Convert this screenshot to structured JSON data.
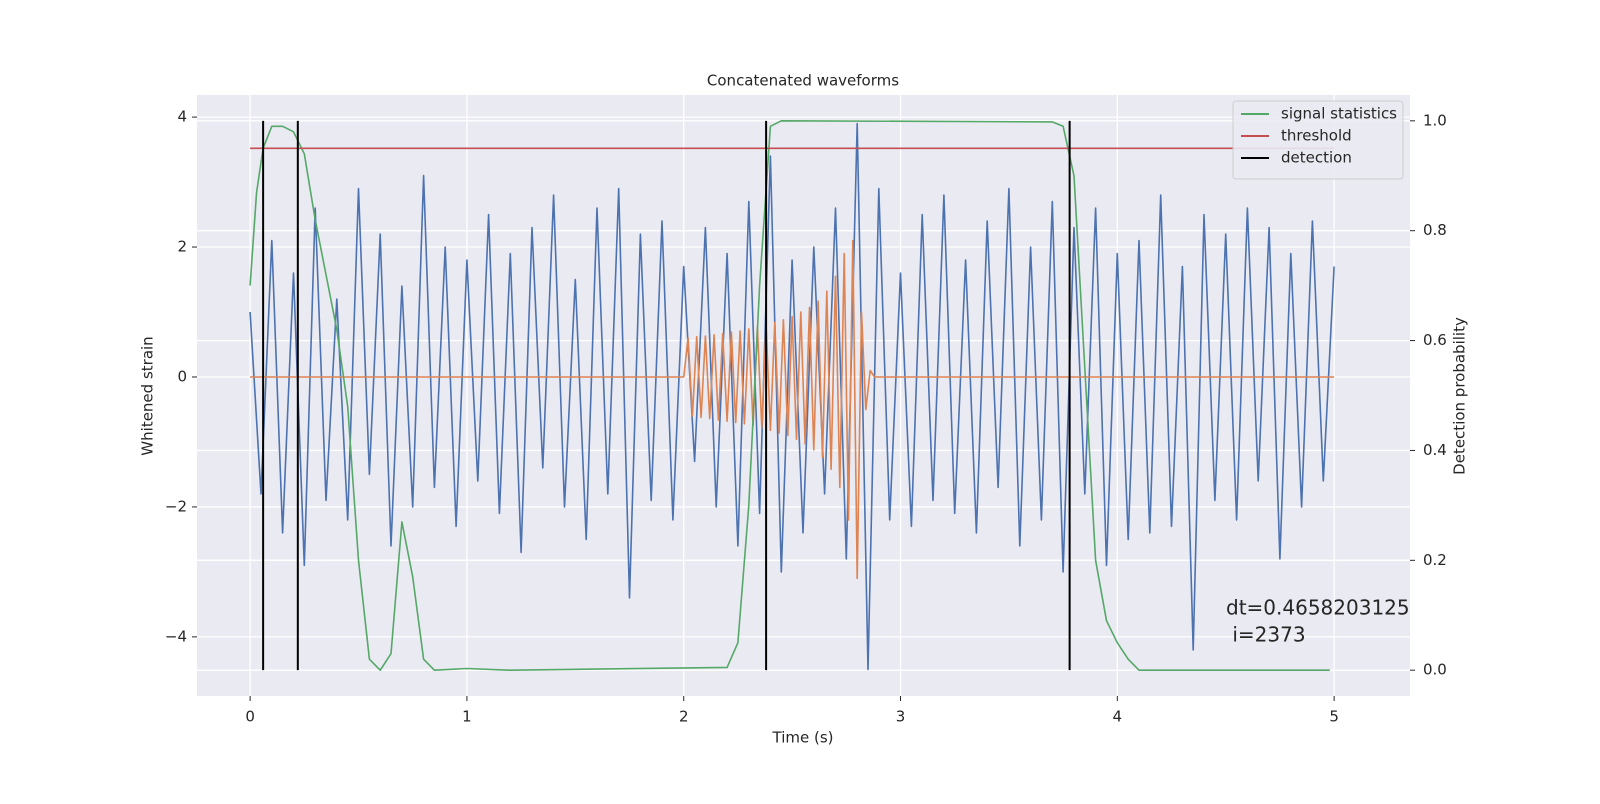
{
  "chart_data": {
    "type": "line",
    "title": "Concatenated waveforms",
    "xlabel": "Time (s)",
    "ylabel": "Whitened strain",
    "y2label": "Detection probability",
    "xlim": [
      -0.245,
      5.35
    ],
    "ylim": [
      -4.91,
      4.34
    ],
    "y2lim": [
      -0.047,
      1.047
    ],
    "xticks": [
      0,
      1,
      2,
      3,
      4,
      5
    ],
    "yticks": [
      {
        "value": -4,
        "label": "−4"
      },
      {
        "value": -2,
        "label": "−2"
      },
      0,
      2,
      4
    ],
    "y2ticks": [
      {
        "value": 0,
        "label": "0.0"
      },
      0.2,
      0.4,
      0.6,
      0.8,
      {
        "value": 1,
        "label": "1.0"
      }
    ],
    "grid": true,
    "legend": "upper right",
    "series": [
      {
        "color": "#4c72b0",
        "x": [
          0,
          0.05,
          0.1,
          0.15,
          0.2,
          0.25,
          0.3,
          0.35,
          0.4,
          0.45,
          0.5,
          0.55,
          0.6,
          0.65,
          0.7,
          0.75,
          0.8,
          0.85,
          0.9,
          0.95,
          1,
          1.05,
          1.1,
          1.15,
          1.2,
          1.25,
          1.3,
          1.35,
          1.4,
          1.45,
          1.5,
          1.55,
          1.6,
          1.65,
          1.7,
          1.75,
          1.8,
          1.85,
          1.9,
          1.95,
          2,
          2.05,
          2.1,
          2.15,
          2.2,
          2.25,
          2.3,
          2.35,
          2.4,
          2.45,
          2.5,
          2.55,
          2.6,
          2.65,
          2.7,
          2.75,
          2.8,
          2.85,
          2.9,
          2.95,
          3,
          3.05,
          3.1,
          3.15,
          3.2,
          3.25,
          3.3,
          3.35,
          3.4,
          3.45,
          3.5,
          3.55,
          3.6,
          3.65,
          3.7,
          3.75,
          3.8,
          3.85,
          3.9,
          3.95,
          4,
          4.05,
          4.1,
          4.15,
          4.2,
          4.25,
          4.3,
          4.35,
          4.4,
          4.45,
          4.5,
          4.55,
          4.6,
          4.65,
          4.7,
          4.75,
          4.8,
          4.85,
          4.9,
          4.95,
          5
        ],
        "values": [
          1.0,
          -1.8,
          2.1,
          -2.4,
          1.6,
          -2.9,
          2.6,
          -1.9,
          1.2,
          -2.2,
          2.9,
          -1.5,
          2.2,
          -2.6,
          1.4,
          -2.0,
          3.1,
          -1.7,
          2.0,
          -2.3,
          1.8,
          -1.6,
          2.5,
          -2.1,
          1.9,
          -2.7,
          2.3,
          -1.4,
          2.8,
          -2.0,
          1.5,
          -2.5,
          2.6,
          -1.8,
          2.9,
          -3.4,
          2.2,
          -1.9,
          2.4,
          -2.2,
          1.7,
          -1.3,
          2.3,
          -2.0,
          1.9,
          -2.6,
          2.7,
          -2.1,
          3.4,
          -3.0,
          1.8,
          -2.4,
          2.0,
          -1.8,
          2.6,
          -2.8,
          3.9,
          -4.5,
          2.9,
          -2.2,
          1.6,
          -2.3,
          2.5,
          -1.9,
          2.8,
          -2.1,
          1.8,
          -2.4,
          2.4,
          -1.7,
          2.9,
          -2.6,
          2.0,
          -2.2,
          2.7,
          -3.0,
          2.3,
          -1.8,
          2.6,
          -2.9,
          1.9,
          -2.5,
          2.1,
          -2.4,
          2.8,
          -2.3,
          1.7,
          -4.2,
          2.5,
          -1.9,
          2.2,
          -2.2,
          2.6,
          -1.6,
          2.3,
          -2.8,
          1.9,
          -2.0,
          2.4,
          -1.6,
          1.7
        ]
      },
      {
        "color": "#dd8452",
        "x": [
          0,
          2,
          2.02,
          2.04,
          2.06,
          2.08,
          2.1,
          2.12,
          2.14,
          2.16,
          2.18,
          2.2,
          2.22,
          2.24,
          2.26,
          2.28,
          2.3,
          2.32,
          2.34,
          2.36,
          2.38,
          2.4,
          2.42,
          2.44,
          2.46,
          2.48,
          2.5,
          2.52,
          2.54,
          2.56,
          2.58,
          2.6,
          2.62,
          2.64,
          2.66,
          2.68,
          2.7,
          2.72,
          2.74,
          2.76,
          2.78,
          2.8,
          2.82,
          2.84,
          2.86,
          2.88,
          5
        ],
        "values": [
          0,
          0,
          0.6,
          -0.6,
          0.62,
          -0.62,
          0.63,
          -0.64,
          0.65,
          -0.66,
          0.67,
          -0.68,
          0.69,
          -0.7,
          0.71,
          -0.72,
          0.74,
          -0.75,
          0.77,
          -0.78,
          0.8,
          -0.82,
          0.84,
          -0.86,
          0.88,
          -0.9,
          0.93,
          -0.96,
          1.0,
          -1.03,
          1.07,
          -1.12,
          1.17,
          -1.24,
          1.32,
          -1.42,
          1.55,
          -1.7,
          1.9,
          -2.2,
          2.1,
          -3.1,
          1.0,
          -0.5,
          0.1,
          0,
          0
        ]
      },
      {
        "name": "signal statistics",
        "color": "#55a868",
        "axis": "y2",
        "x": [
          0,
          0.03,
          0.06,
          0.1,
          0.15,
          0.2,
          0.25,
          0.3,
          0.35,
          0.4,
          0.45,
          0.5,
          0.55,
          0.6,
          0.65,
          0.7,
          0.75,
          0.8,
          0.85,
          1.0,
          1.2,
          2.2,
          2.25,
          2.3,
          2.35,
          2.4,
          2.45,
          3.7,
          3.75,
          3.8,
          3.85,
          3.9,
          3.95,
          4.0,
          4.05,
          4.1,
          4.98
        ],
        "values": [
          0.7,
          0.87,
          0.95,
          0.99,
          0.99,
          0.98,
          0.94,
          0.82,
          0.72,
          0.62,
          0.48,
          0.2,
          0.02,
          0.0,
          0.03,
          0.27,
          0.17,
          0.02,
          0.0,
          0.003,
          0.0,
          0.005,
          0.05,
          0.3,
          0.7,
          0.99,
          1.0,
          0.998,
          0.99,
          0.9,
          0.55,
          0.2,
          0.09,
          0.05,
          0.02,
          0.0,
          0.0
        ]
      },
      {
        "name": "threshold",
        "color": "#c44e52",
        "axis": "y2",
        "x": [
          0,
          5
        ],
        "values": [
          0.95,
          0.95
        ]
      }
    ],
    "vlines": {
      "name": "detection",
      "color": "#000000",
      "axis": "y2",
      "x": [
        0.06,
        0.22,
        2.38,
        3.78
      ],
      "ymin": 0,
      "ymax": 1
    },
    "annotation": [
      "dt=0.4658203125",
      " i=2373"
    ]
  }
}
